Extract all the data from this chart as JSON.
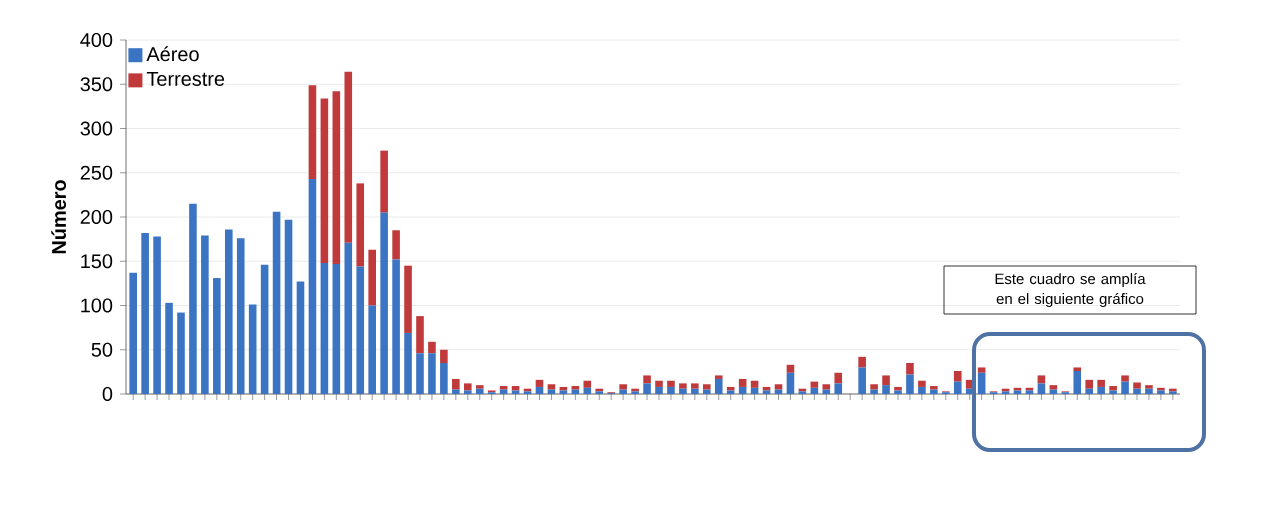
{
  "chart_data": {
    "type": "bar",
    "stacked": true,
    "ylabel": "Número",
    "ylim": [
      0,
      400
    ],
    "yticks": [
      0,
      50,
      100,
      150,
      200,
      250,
      300,
      350,
      400
    ],
    "grid": "y",
    "legend": "top left",
    "categories": [
      null,
      null,
      null,
      null,
      null,
      null,
      null,
      null,
      null,
      null,
      null,
      null,
      null,
      null,
      null,
      null,
      null,
      null,
      null,
      null,
      null,
      null,
      null,
      null,
      null,
      null,
      null,
      null,
      null,
      null,
      null,
      null,
      null,
      null,
      null,
      null,
      null,
      null,
      null,
      null,
      null,
      null,
      null,
      null,
      null,
      null,
      null,
      null,
      null,
      null,
      null,
      null,
      null,
      null,
      null,
      null,
      null,
      null,
      null,
      null,
      null,
      null,
      null,
      null,
      null,
      null,
      null,
      null,
      null,
      null,
      null,
      null,
      null,
      null,
      null,
      null,
      null,
      null,
      null,
      null,
      null,
      null,
      null,
      null,
      null,
      null,
      null,
      null
    ],
    "series": [
      {
        "name": "Aéreo",
        "color": "#3b74c2",
        "values": [
          137,
          182,
          178,
          103,
          92,
          215,
          179,
          131,
          186,
          176,
          101,
          146,
          206,
          197,
          127,
          243,
          148,
          147,
          171,
          144,
          100,
          205,
          152,
          69,
          46,
          46,
          35,
          5,
          4,
          6,
          2,
          5,
          4,
          3,
          8,
          5,
          4,
          5,
          7,
          3,
          1,
          5,
          3,
          12,
          8,
          8,
          6,
          6,
          5,
          17,
          4,
          8,
          7,
          4,
          5,
          24,
          3,
          7,
          5,
          12,
          0,
          30,
          5,
          10,
          4,
          22,
          8,
          5,
          2,
          14,
          6,
          24,
          2,
          3,
          4,
          4,
          12,
          5,
          2,
          26,
          6,
          8,
          4,
          14,
          6,
          6,
          4,
          3
        ]
      },
      {
        "name": "Terrestre",
        "color": "#c0393b",
        "values": [
          0,
          0,
          0,
          0,
          0,
          0,
          0,
          0,
          0,
          0,
          0,
          0,
          0,
          0,
          0,
          106,
          186,
          195,
          193,
          94,
          63,
          70,
          33,
          76,
          42,
          13,
          15,
          12,
          8,
          4,
          2,
          4,
          5,
          3,
          8,
          6,
          4,
          4,
          8,
          3,
          1,
          6,
          3,
          9,
          7,
          7,
          6,
          6,
          6,
          4,
          4,
          9,
          8,
          4,
          6,
          9,
          3,
          7,
          6,
          12,
          0,
          12,
          6,
          11,
          4,
          13,
          7,
          4,
          1,
          12,
          10,
          6,
          1,
          3,
          3,
          3,
          9,
          5,
          1,
          4,
          10,
          8,
          5,
          7,
          7,
          4,
          3,
          3
        ]
      }
    ],
    "annotations": [
      "Este cuadro se amplía en el siguiente gráfico"
    ]
  }
}
